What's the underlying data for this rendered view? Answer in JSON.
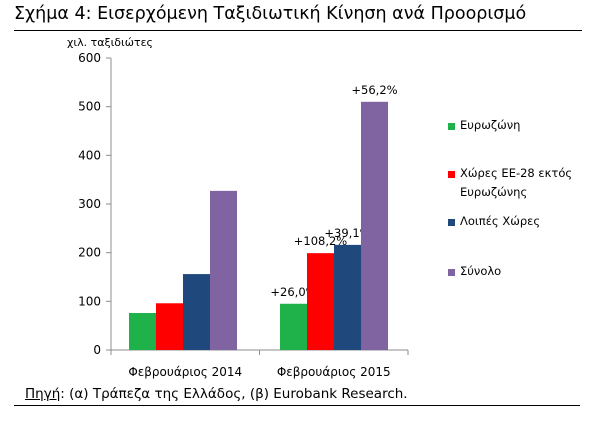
{
  "title": "Σχήμα 4: Εισερχόμενη Ταξιδιωτική Κίνηση ανά Προορισμό",
  "source": {
    "prefix": "Πηγή",
    "text": ": (α) Τράπεζα της Ελλάδος, (β) Eurobank Research."
  },
  "chart_data": {
    "type": "bar",
    "ylabel": "χιλ. ταξιδιώτες",
    "ylim": [
      0,
      600
    ],
    "yticks": [
      0,
      100,
      200,
      300,
      400,
      500,
      600
    ],
    "categories": [
      "Φεβρουάριος 2014",
      "Φεβρουάριος 2015"
    ],
    "series": [
      {
        "name": "Ευρωζώνη",
        "color": "#1fb24b",
        "values": [
          76,
          95
        ],
        "labels": [
          "",
          "+26,0%"
        ]
      },
      {
        "name": "Χώρες ΕΕ-28 εκτός Ευρωζώνης",
        "color": "#ff0000",
        "values": [
          96,
          199
        ],
        "labels": [
          "",
          "+108,2%"
        ]
      },
      {
        "name": "Λοιπές Χώρες",
        "color": "#1f497d",
        "values": [
          156,
          216
        ],
        "labels": [
          "",
          "+39,1%"
        ]
      },
      {
        "name": "Σύνολο",
        "color": "#8064a2",
        "values": [
          327,
          510
        ],
        "labels": [
          "",
          "+56,2%"
        ]
      }
    ],
    "legend_position": "right",
    "grid": false
  }
}
